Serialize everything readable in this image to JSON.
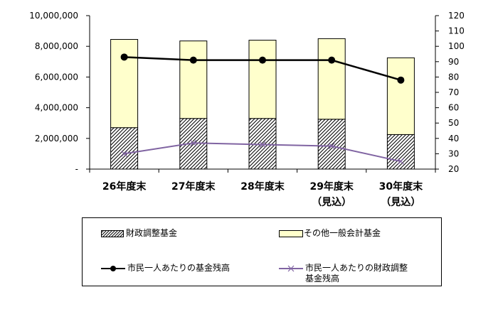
{
  "chart_data": {
    "type": "bar",
    "categories": [
      [
        "26年度末"
      ],
      [
        "27年度末"
      ],
      [
        "28年度末"
      ],
      [
        "29年度末",
        "（見込）"
      ],
      [
        "30年度末",
        "（見込）"
      ]
    ],
    "series": [
      {
        "name": "財政調整基金",
        "kind": "bar-stacked",
        "axis": "left",
        "pattern": "hatch",
        "values": [
          2700000,
          3300000,
          3300000,
          3250000,
          2250000
        ]
      },
      {
        "name": "その他一般会計基金",
        "kind": "bar-stacked",
        "axis": "left",
        "color": "#ffffcc",
        "values": [
          5750000,
          5050000,
          5100000,
          5250000,
          5000000
        ]
      },
      {
        "name": "市民一人あたりの基金残高",
        "kind": "line",
        "axis": "right",
        "color": "#000000",
        "marker": "circle",
        "values": [
          93,
          91,
          91,
          91,
          78
        ]
      },
      {
        "name": "市民一人あたりの財政調整基金残高",
        "kind": "line",
        "axis": "right",
        "color": "#8064a2",
        "marker": "x",
        "values": [
          30,
          37,
          36,
          35,
          25
        ]
      }
    ],
    "y_left": {
      "min": 0,
      "max": 10000000,
      "step": 2000000,
      "tick_labels": [
        "-",
        "2,000,000",
        "4,000,000",
        "6,000,000",
        "8,000,000",
        "10,000,000"
      ]
    },
    "y_right": {
      "min": 20,
      "max": 120,
      "step": 10,
      "tick_labels": [
        "20",
        "30",
        "40",
        "50",
        "60",
        "70",
        "80",
        "90",
        "100",
        "110",
        "120"
      ]
    },
    "legend": {
      "placement": "bottom",
      "items": [
        {
          "label_lines": [
            "財政調整基金"
          ],
          "series": 0
        },
        {
          "label_lines": [
            "その他一般会計基金"
          ],
          "series": 1
        },
        {
          "label_lines": [
            "市民一人あたりの基金残高"
          ],
          "series": 2
        },
        {
          "label_lines": [
            "市民一人あたりの財政調整",
            "基金残高"
          ],
          "series": 3
        }
      ]
    },
    "grid": false
  }
}
